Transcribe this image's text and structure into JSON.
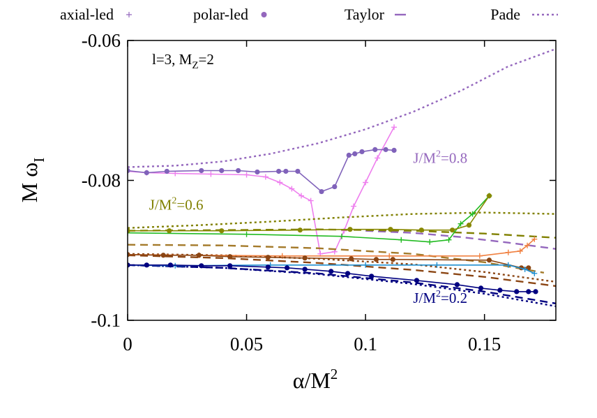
{
  "chart_data": {
    "type": "line",
    "title": "",
    "annotation": "l=3, M_z=2",
    "annotation_main": "l=3, M",
    "annotation_sub": "Z",
    "annotation_tail": "=2",
    "xlabel_main": "α/M",
    "xlabel_sup": "2",
    "ylabel_main": "M ω",
    "ylabel_sub": "I",
    "xlim": [
      0,
      0.18
    ],
    "ylim": [
      -0.1,
      -0.06
    ],
    "xticks": [
      0,
      0.05,
      0.1,
      0.15
    ],
    "xtick_labels": [
      "0",
      "0.05",
      "0.1",
      "0.15"
    ],
    "yticks": [
      -0.1,
      -0.08,
      -0.06
    ],
    "ytick_labels": [
      "-0.1",
      "-0.08",
      "-0.06"
    ],
    "legend": [
      {
        "label": "axial-led",
        "kind": "plus",
        "color": "#9467bd"
      },
      {
        "label": "polar-led",
        "kind": "dot",
        "color": "#9467bd"
      },
      {
        "label": "Taylor",
        "kind": "dash",
        "color": "#9467bd"
      },
      {
        "label": "Pade",
        "kind": "dot-line",
        "color": "#9467bd"
      }
    ],
    "spin_labels": [
      {
        "text": "J/M",
        "sup": "2",
        "rest": "=0.8",
        "x": 0.12,
        "y": -0.0775,
        "color": "#9467bd"
      },
      {
        "text": "J/M",
        "sup": "2",
        "rest": "=0.6",
        "x": 0.009,
        "y": -0.0842,
        "color": "#808000"
      },
      {
        "text": "J/M",
        "sup": "2",
        "rest": "=0.2",
        "x": 0.12,
        "y": -0.0975,
        "color": "#000080"
      }
    ],
    "series": [
      {
        "name": "Pade J/M^2=0.8",
        "style": "pade",
        "color": "#9467bd",
        "x": [
          0,
          0.02,
          0.04,
          0.06,
          0.08,
          0.1,
          0.12,
          0.14,
          0.16,
          0.18
        ],
        "y": [
          -0.0781,
          -0.0779,
          -0.0773,
          -0.0762,
          -0.0747,
          -0.0727,
          -0.0702,
          -0.0672,
          -0.0637,
          -0.0612
        ]
      },
      {
        "name": "Taylor J/M^2=0.8",
        "style": "taylor",
        "color": "#9467bd",
        "x": [
          0.1,
          0.12,
          0.14,
          0.16,
          0.18
        ],
        "y": [
          -0.0872,
          -0.0875,
          -0.0881,
          -0.0889,
          -0.0898
        ]
      },
      {
        "name": "axial J/M^2=0.8",
        "style": "axial",
        "color": "#ee7eee",
        "x": [
          0,
          0.008,
          0.02,
          0.035,
          0.05,
          0.058,
          0.064,
          0.069,
          0.073,
          0.077,
          0.081,
          0.087,
          0.091,
          0.095,
          0.1,
          0.105,
          0.112
        ],
        "y": [
          -0.0787,
          -0.0789,
          -0.079,
          -0.0791,
          -0.0792,
          -0.0795,
          -0.0803,
          -0.0812,
          -0.0822,
          -0.0829,
          -0.0905,
          -0.0902,
          -0.0872,
          -0.0837,
          -0.0803,
          -0.0768,
          -0.0724
        ]
      },
      {
        "name": "polar J/M^2=0.8",
        "style": "polar",
        "color": "#8062ba",
        "x": [
          0,
          0.008,
          0.0165,
          0.031,
          0.0395,
          0.0465,
          0.0545,
          0.0635,
          0.0665,
          0.0715,
          0.0815,
          0.087,
          0.093,
          0.0955,
          0.0985,
          0.104,
          0.1085,
          0.112
        ],
        "y": [
          -0.0786,
          -0.0789,
          -0.0787,
          -0.0786,
          -0.0786,
          -0.0786,
          -0.0788,
          -0.0787,
          -0.0787,
          -0.0787,
          -0.0816,
          -0.0809,
          -0.0764,
          -0.0762,
          -0.0759,
          -0.0756,
          -0.0756,
          -0.0757
        ]
      },
      {
        "name": "Pade J/M^2=0.6",
        "style": "pade",
        "color": "#808000",
        "x": [
          0,
          0.03,
          0.06,
          0.09,
          0.12,
          0.15,
          0.18
        ],
        "y": [
          -0.0868,
          -0.0864,
          -0.0859,
          -0.0853,
          -0.0848,
          -0.0846,
          -0.0848
        ]
      },
      {
        "name": "Taylor J/M^2=0.6",
        "style": "taylor",
        "color": "#808000",
        "x": [
          0,
          0.04,
          0.08,
          0.12,
          0.15,
          0.18
        ],
        "y": [
          -0.0872,
          -0.0871,
          -0.087,
          -0.0872,
          -0.0876,
          -0.0882
        ]
      },
      {
        "name": "axial J/M^2=0.6",
        "style": "axial",
        "color": "#22bb22",
        "x": [
          0,
          0.05,
          0.09,
          0.115,
          0.127,
          0.135,
          0.14,
          0.145,
          0.152
        ],
        "y": [
          -0.0875,
          -0.0877,
          -0.088,
          -0.0885,
          -0.0888,
          -0.0885,
          -0.0862,
          -0.0848,
          -0.0822
        ]
      },
      {
        "name": "polar J/M^2=0.6",
        "style": "polar",
        "color": "#888800",
        "x": [
          0,
          0.0175,
          0.0395,
          0.0725,
          0.0935,
          0.1105,
          0.1235,
          0.1365,
          0.1435,
          0.152
        ],
        "y": [
          -0.0872,
          -0.0872,
          -0.0872,
          -0.0871,
          -0.087,
          -0.087,
          -0.0871,
          -0.0871,
          -0.0864,
          -0.0822
        ]
      },
      {
        "name": "Pade J/M^2=0.4",
        "style": "pade",
        "color": "#8b4513",
        "x": [
          0,
          0.04,
          0.08,
          0.12,
          0.15,
          0.18
        ],
        "y": [
          -0.0905,
          -0.0907,
          -0.0912,
          -0.092,
          -0.0931,
          -0.0945
        ]
      },
      {
        "name": "Taylor J/M^2=0.4",
        "style": "taylor",
        "color": "#8b4513",
        "x": [
          0,
          0.04,
          0.08,
          0.12,
          0.15,
          0.18
        ],
        "y": [
          -0.0907,
          -0.0911,
          -0.0918,
          -0.0928,
          -0.0938,
          -0.0951
        ]
      },
      {
        "name": "Taylor J/M^2=0.6 lower",
        "style": "taylor",
        "color": "#a47a2a",
        "x": [
          0,
          0.04,
          0.08,
          0.12,
          0.15,
          0.175
        ],
        "y": [
          -0.0892,
          -0.0893,
          -0.0897,
          -0.0905,
          -0.0917,
          -0.0932
        ]
      },
      {
        "name": "axial J/M^2=0.4",
        "style": "axial",
        "color": "#f08040",
        "x": [
          0,
          0.03,
          0.065,
          0.11,
          0.148,
          0.16,
          0.165,
          0.168,
          0.171
        ],
        "y": [
          -0.0906,
          -0.0907,
          -0.0908,
          -0.0908,
          -0.0908,
          -0.0903,
          -0.0901,
          -0.0893,
          -0.0884
        ]
      },
      {
        "name": "polar J/M^2=0.4",
        "style": "polar",
        "color": "#8b4513",
        "x": [
          0,
          0.015,
          0.03,
          0.043,
          0.059,
          0.0745,
          0.094,
          0.1045,
          0.1115,
          0.152,
          0.1655,
          0.1685
        ],
        "y": [
          -0.0906,
          -0.0907,
          -0.0907,
          -0.0909,
          -0.091,
          -0.0911,
          -0.0912,
          -0.0913,
          -0.0913,
          -0.0914,
          -0.0925,
          -0.0925
        ]
      },
      {
        "name": "Pade J/M^2=0.2",
        "style": "pade",
        "color": "#000080",
        "x": [
          0,
          0.04,
          0.08,
          0.12,
          0.15,
          0.18
        ],
        "y": [
          -0.0921,
          -0.0925,
          -0.0934,
          -0.0948,
          -0.0962,
          -0.098
        ]
      },
      {
        "name": "Taylor J/M^2=0.2",
        "style": "taylor",
        "color": "#000080",
        "x": [
          0,
          0.04,
          0.08,
          0.12,
          0.15,
          0.18
        ],
        "y": [
          -0.0921,
          -0.0925,
          -0.0933,
          -0.0946,
          -0.0959,
          -0.0976
        ]
      },
      {
        "name": "axial J/M^2=0.2",
        "style": "axial",
        "color": "#1f8fd0",
        "x": [
          0,
          0.02,
          0.06,
          0.1,
          0.13,
          0.16,
          0.167,
          0.171
        ],
        "y": [
          -0.0921,
          -0.0922,
          -0.0921,
          -0.0921,
          -0.0921,
          -0.0921,
          -0.0927,
          -0.0933
        ]
      },
      {
        "name": "polar J/M^2=0.2",
        "style": "polar",
        "color": "#000080",
        "x": [
          0,
          0.008,
          0.018,
          0.031,
          0.043,
          0.059,
          0.067,
          0.0745,
          0.0855,
          0.0925,
          0.1025,
          0.1215,
          0.1385,
          0.1485,
          0.1565,
          0.1635,
          0.1685,
          0.1715
        ],
        "y": [
          -0.0921,
          -0.0921,
          -0.0921,
          -0.0922,
          -0.0922,
          -0.0924,
          -0.0925,
          -0.0927,
          -0.093,
          -0.0933,
          -0.0937,
          -0.0943,
          -0.0949,
          -0.0954,
          -0.0957,
          -0.0959,
          -0.0959,
          -0.0959
        ]
      }
    ]
  }
}
